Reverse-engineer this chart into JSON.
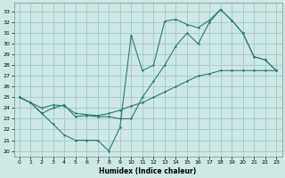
{
  "xlabel": "Humidex (Indice chaleur)",
  "background_color": "#cde8e5",
  "grid_color": "#a0c8c5",
  "line_color": "#2e7b70",
  "xlim": [
    -0.5,
    23.5
  ],
  "ylim": [
    19.5,
    33.8
  ],
  "yticks": [
    20,
    21,
    22,
    23,
    24,
    25,
    26,
    27,
    28,
    29,
    30,
    31,
    32,
    33
  ],
  "xticks": [
    0,
    1,
    2,
    3,
    4,
    5,
    6,
    7,
    8,
    9,
    10,
    11,
    12,
    13,
    14,
    15,
    16,
    17,
    18,
    19,
    20,
    21,
    22,
    23
  ],
  "line1_x": [
    0,
    1,
    2,
    3,
    4,
    5,
    6,
    7,
    8,
    9,
    10,
    11,
    12,
    13,
    14,
    15,
    16,
    17,
    18,
    19,
    20,
    21,
    22,
    23
  ],
  "line1_y": [
    25.0,
    24.5,
    23.5,
    22.5,
    21.5,
    21.0,
    21.0,
    21.0,
    20.0,
    22.2,
    30.8,
    27.5,
    28.0,
    32.1,
    32.3,
    31.8,
    31.5,
    32.2,
    33.2,
    32.2,
    31.0,
    28.8,
    28.5,
    27.5
  ],
  "line2_x": [
    0,
    1,
    2,
    3,
    4,
    5,
    6,
    7,
    8,
    9,
    10,
    11,
    12,
    13,
    14,
    15,
    16,
    17,
    18,
    19,
    20,
    21,
    22,
    23
  ],
  "line2_y": [
    25.0,
    24.5,
    23.5,
    24.0,
    24.3,
    23.2,
    23.3,
    23.2,
    23.2,
    23.0,
    23.0,
    25.0,
    26.5,
    28.0,
    29.8,
    31.0,
    30.0,
    32.0,
    33.2,
    32.2,
    31.0,
    28.8,
    28.5,
    27.5
  ],
  "line3_x": [
    0,
    1,
    2,
    3,
    4,
    5,
    6,
    7,
    8,
    9,
    10,
    11,
    12,
    13,
    14,
    15,
    16,
    17,
    18,
    19,
    20,
    21,
    22,
    23
  ],
  "line3_y": [
    25.0,
    24.5,
    24.0,
    24.3,
    24.2,
    23.5,
    23.4,
    23.3,
    23.5,
    23.8,
    24.2,
    24.5,
    25.0,
    25.5,
    26.0,
    26.5,
    27.0,
    27.2,
    27.5,
    27.5,
    27.5,
    27.5,
    27.5,
    27.5
  ]
}
